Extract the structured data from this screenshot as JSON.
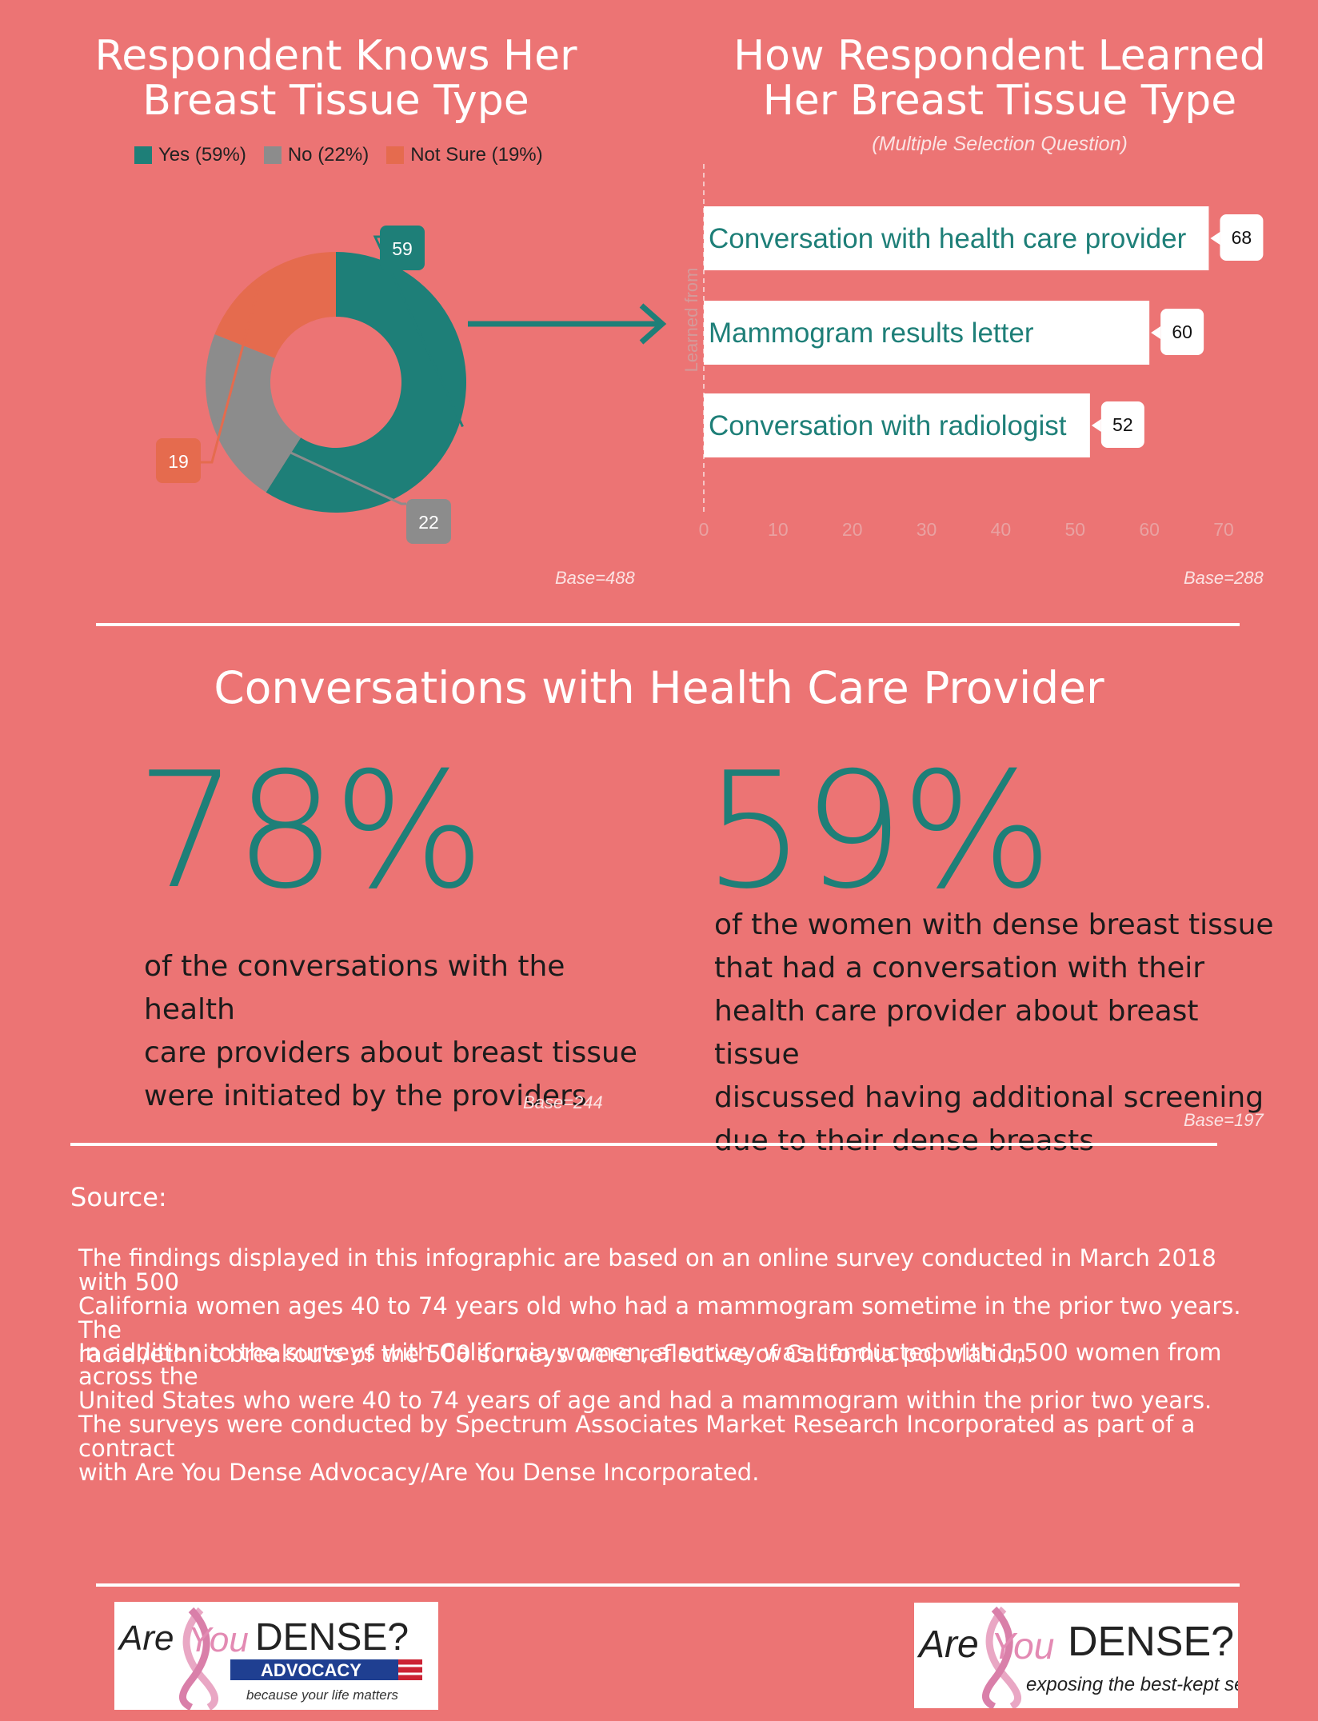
{
  "colors": {
    "background": "#ec7474",
    "teal": "#1e7f78",
    "gray": "#8c8c8c",
    "orange": "#e56b4e",
    "white": "#ffffff",
    "dark_text": "#1b1b1b"
  },
  "left_chart": {
    "title": "Respondent Knows Her Breast Tissue Type",
    "base": "Base=488"
  },
  "right_chart": {
    "title": "How Respondent Learned Her Breast Tissue Type",
    "subtitle": "(Multiple Selection Question)",
    "base": "Base=288"
  },
  "chart_data": [
    {
      "type": "pie",
      "variant": "donut",
      "title": "Respondent Knows Her Breast Tissue Type",
      "legend": [
        "Yes (59%)",
        "No (22%)",
        "Not Sure (19%)"
      ],
      "legend_position": "top",
      "slices": [
        {
          "label": "Yes",
          "value": 59,
          "color": "#1e7f78"
        },
        {
          "label": "No",
          "value": 22,
          "color": "#8c8c8c"
        },
        {
          "label": "Not Sure",
          "value": 19,
          "color": "#e56b4e"
        }
      ],
      "data_labels": [
        "59",
        "22",
        "19"
      ]
    },
    {
      "type": "bar",
      "orientation": "horizontal",
      "title": "How Respondent Learned Her Breast Tissue Type",
      "categories": [
        "Conversation with health care provider",
        "Mammogram results letter",
        "Conversation with radiologist"
      ],
      "values": [
        68,
        60,
        52
      ],
      "data_labels": [
        "68",
        "60",
        "52"
      ],
      "ylabel": "Learned from",
      "xlim": [
        0,
        70
      ],
      "xticks": [
        "0",
        "10",
        "20",
        "30",
        "40",
        "50",
        "60",
        "70"
      ]
    }
  ],
  "section": {
    "title": "Conversations with Health Care Provider"
  },
  "stats": [
    {
      "value": "78%",
      "lines": [
        "of the conversations with the health",
        "care providers about breast tissue",
        "were initiated by the providers"
      ],
      "base": "Base=244"
    },
    {
      "value": "59%",
      "lines": [
        "of the women with dense breast tissue",
        "that had a conversation with their",
        "health care provider about breast tissue",
        "discussed having additional screening",
        "due to their dense breasts"
      ],
      "base": "Base=197"
    }
  ],
  "source": {
    "label": "Source:",
    "paragraphs": [
      [
        "The findings displayed in this infographic are based on an online survey conducted in March 2018 with 500",
        "California women ages 40 to 74 years old who had a mammogram sometime in the prior two years. The",
        "racial/ethnic breakouts of the 500 surveys were reflective of California population."
      ],
      [
        "In addition to the surveys with California women, a survey was conducted with 1,500 women from across the",
        "United States who were 40 to 74 years of age and had a mammogram within the prior two years."
      ],
      [
        "The surveys were conducted by Spectrum Associates Market Research Incorporated as part of a contract",
        "with Are You Dense Advocacy/Are You Dense Incorporated."
      ]
    ]
  },
  "logos": {
    "left": {
      "are": "Are",
      "you": "You",
      "dense": "DENSE?",
      "advocacy": "ADVOCACY",
      "tagline": "because your life matters"
    },
    "right": {
      "are": "Are",
      "you": "You",
      "dense": "DENSE?",
      "tagline": "exposing the best-kept secret®"
    }
  }
}
